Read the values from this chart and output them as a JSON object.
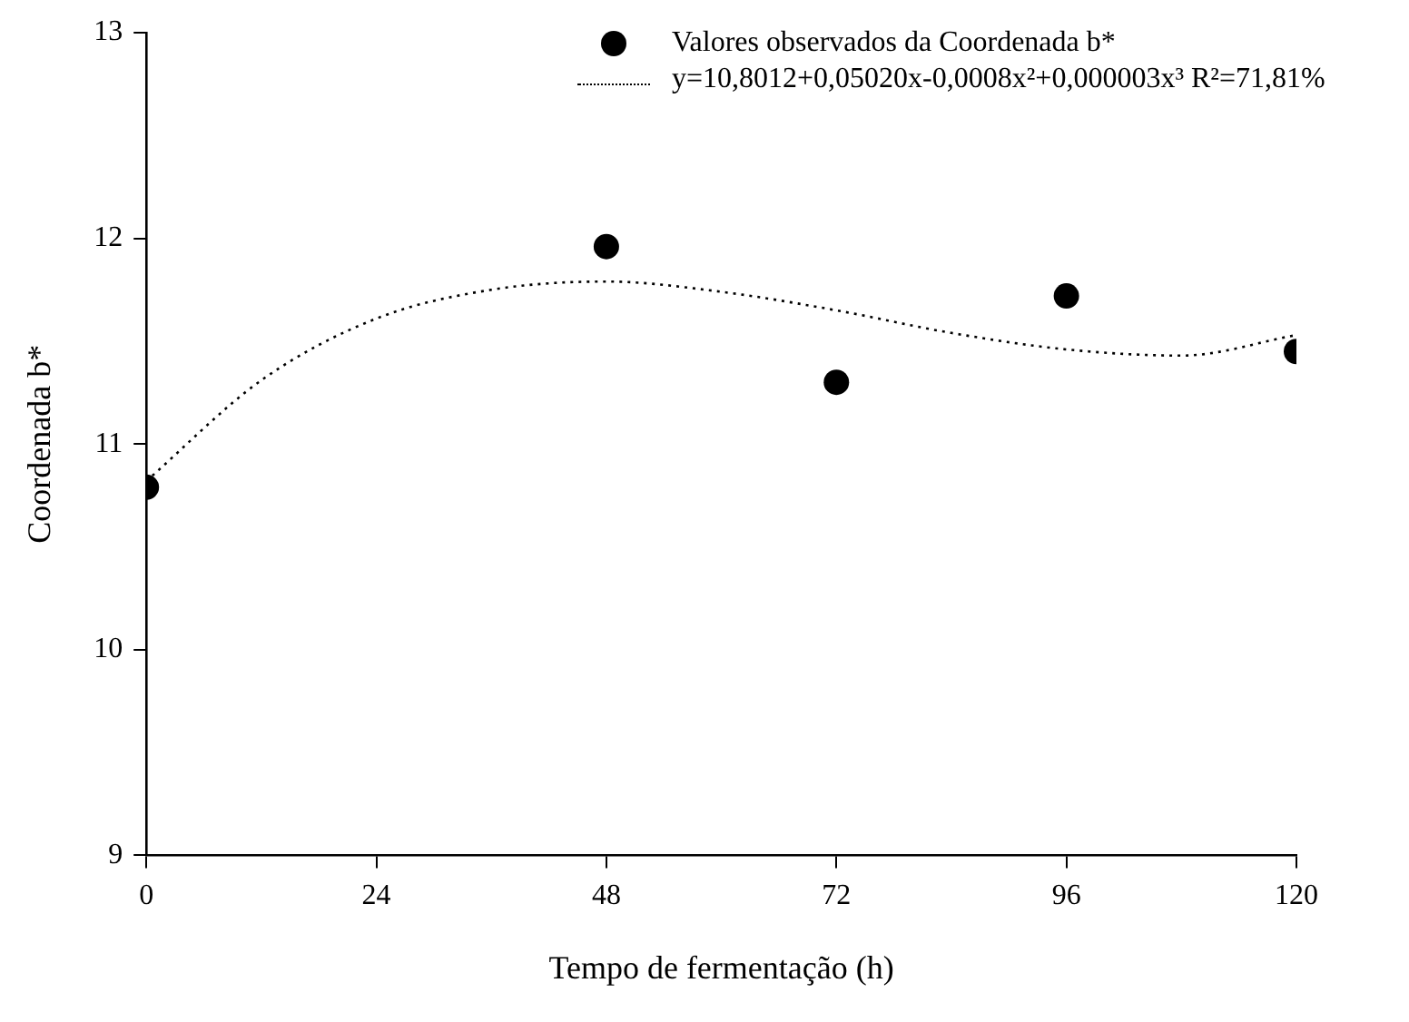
{
  "chart_data": {
    "type": "scatter",
    "xlabel": "Tempo de fermentação (h)",
    "ylabel": "Coordenada b*",
    "xlim": [
      0,
      120
    ],
    "xticks": [
      0,
      24,
      48,
      72,
      96,
      120
    ],
    "ylim": [
      9,
      13
    ],
    "yticks": [
      9,
      10,
      11,
      12,
      13
    ],
    "grid": false,
    "legend": "top right",
    "series": [
      {
        "name": "Valores observados da Coordenada b*",
        "marker": "circle",
        "color": "#000000",
        "x": [
          0,
          48,
          72,
          96,
          120
        ],
        "values": [
          10.79,
          11.96,
          11.3,
          11.72,
          11.45
        ]
      },
      {
        "name": "y=10,8012+0,05020x-0,0008x²+0,000003x³ R²=71,81%",
        "type": "line",
        "marker": "none",
        "line_style": "dotted",
        "color": "#000000",
        "x": [
          0,
          12,
          24,
          36,
          48,
          60,
          72,
          84,
          96,
          108,
          120
        ],
        "values": [
          10.82,
          11.31,
          11.61,
          11.75,
          11.79,
          11.74,
          11.65,
          11.54,
          11.46,
          11.43,
          11.53
        ]
      }
    ]
  }
}
